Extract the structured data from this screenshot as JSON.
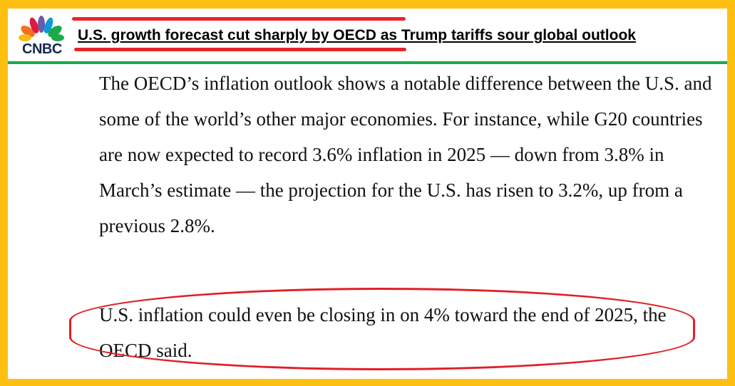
{
  "header": {
    "logo_text": "CNBC",
    "title": "U.S. growth forecast cut sharply by OECD as Trump tariffs sour global outlook"
  },
  "article": {
    "paragraphs": [
      "The OECD’s inflation outlook shows a notable difference between the U.S. and some of the world’s other major economies. For instance, while G20 countries are now expected to record 3.6% inflation in 2025 — down from 3.8% in March’s estimate — the projection for the U.S. has risen to 3.2%, up from a previous 2.8%.",
      "U.S. inflation could even be closing in on 4% toward the end of 2025, the OECD said."
    ]
  },
  "colors": {
    "frame": "#FDC010",
    "accent_red": "#E8242A",
    "divider_green": "#1AAA4A"
  }
}
